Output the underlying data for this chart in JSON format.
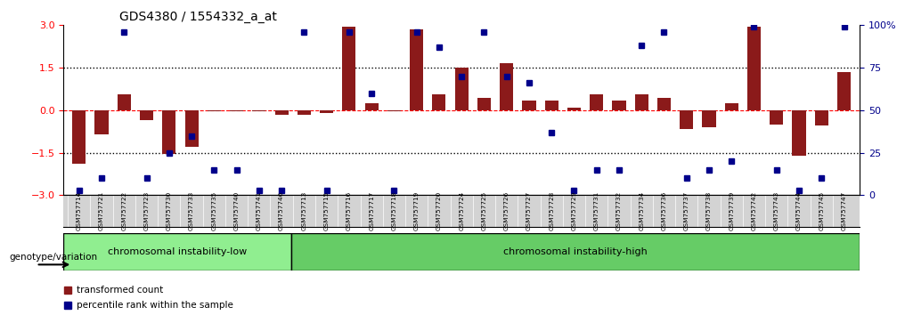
{
  "title": "GDS4380 / 1554332_a_at",
  "samples": [
    "GSM757714",
    "GSM757721",
    "GSM757722",
    "GSM757723",
    "GSM757730",
    "GSM757733",
    "GSM757735",
    "GSM757740",
    "GSM757741",
    "GSM757746",
    "GSM757713",
    "GSM757715",
    "GSM757716",
    "GSM757717",
    "GSM757718",
    "GSM757719",
    "GSM757720",
    "GSM757724",
    "GSM757725",
    "GSM757726",
    "GSM757727",
    "GSM757728",
    "GSM757729",
    "GSM757731",
    "GSM757732",
    "GSM757734",
    "GSM757736",
    "GSM757737",
    "GSM757738",
    "GSM757739",
    "GSM757742",
    "GSM757743",
    "GSM757744",
    "GSM757745",
    "GSM757747"
  ],
  "bar_values": [
    -1.9,
    -0.85,
    0.55,
    -0.35,
    -1.55,
    -1.3,
    -0.05,
    -0.05,
    -0.05,
    -0.15,
    -0.15,
    -0.1,
    2.95,
    0.25,
    -0.05,
    2.85,
    0.55,
    1.5,
    0.45,
    1.65,
    0.35,
    0.35,
    0.1,
    0.55,
    0.35,
    0.55,
    0.45,
    -0.65,
    -0.6,
    0.25,
    2.95,
    -0.5,
    -1.6,
    -0.55,
    1.35
  ],
  "dot_values_pct": [
    3,
    10,
    96,
    10,
    25,
    35,
    15,
    15,
    3,
    3,
    96,
    3,
    96,
    60,
    3,
    96,
    87,
    70,
    96,
    70,
    66,
    37,
    3,
    15,
    15,
    88,
    96,
    10,
    15,
    20,
    99,
    15,
    3,
    10,
    99
  ],
  "group1_label": "chromosomal instability-low",
  "group2_label": "chromosomal instability-high",
  "group1_count": 10,
  "group2_count": 25,
  "genotype_label": "genotype/variation",
  "bar_color": "#8B1A1A",
  "dot_color": "#00008B",
  "group1_bg": "#90EE90",
  "group2_bg": "#00CC00",
  "ylim": [
    -3,
    3
  ],
  "y2lim": [
    0,
    100
  ],
  "dotted_lines": [
    1.5,
    -1.5
  ],
  "y_ticks": [
    -3,
    -1.5,
    0,
    1.5,
    3
  ],
  "y2_ticks": [
    0,
    25,
    50,
    75,
    100
  ]
}
